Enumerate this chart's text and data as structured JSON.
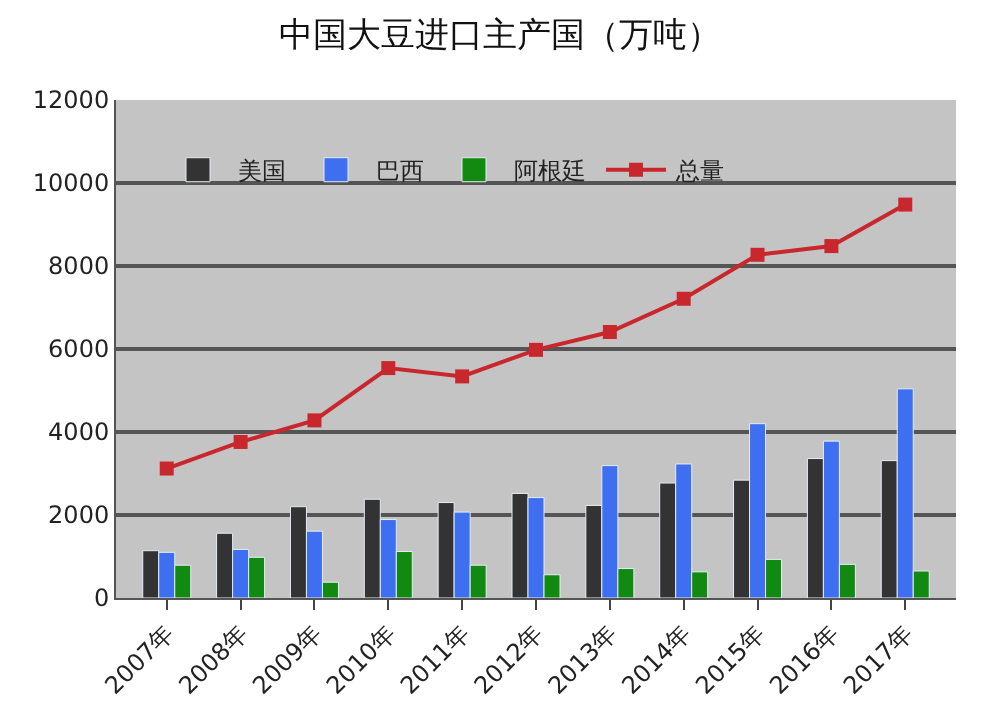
{
  "chart_data": {
    "type": "bar",
    "title": "中国大豆进口主产国（万吨）",
    "categories": [
      "2007年",
      "2008年",
      "2009年",
      "2010年",
      "2011年",
      "2012年",
      "2013年",
      "2014年",
      "2015年",
      "2016年",
      "2017年"
    ],
    "series": [
      {
        "name": "美国",
        "color": "#333333",
        "values": [
          1140,
          1560,
          2200,
          2380,
          2300,
          2520,
          2230,
          2770,
          2840,
          3360,
          3310
        ]
      },
      {
        "name": "巴西",
        "color": "#3d6ff0",
        "values": [
          1100,
          1170,
          1610,
          1890,
          2070,
          2420,
          3190,
          3230,
          4200,
          3780,
          5040
        ]
      },
      {
        "name": "阿根廷",
        "color": "#128a12",
        "values": [
          790,
          980,
          380,
          1120,
          790,
          560,
          710,
          630,
          930,
          810,
          650
        ]
      },
      {
        "name": "总量",
        "type": "line",
        "color": "#c8282d",
        "values": [
          3120,
          3760,
          4280,
          5540,
          5340,
          5980,
          6410,
          7210,
          8270,
          8480,
          9480
        ]
      }
    ],
    "ylim": [
      0,
      12000
    ],
    "yticks": [
      0,
      2000,
      4000,
      6000,
      8000,
      10000,
      12000
    ],
    "grid": "y",
    "legend": "top",
    "marker": "square"
  }
}
